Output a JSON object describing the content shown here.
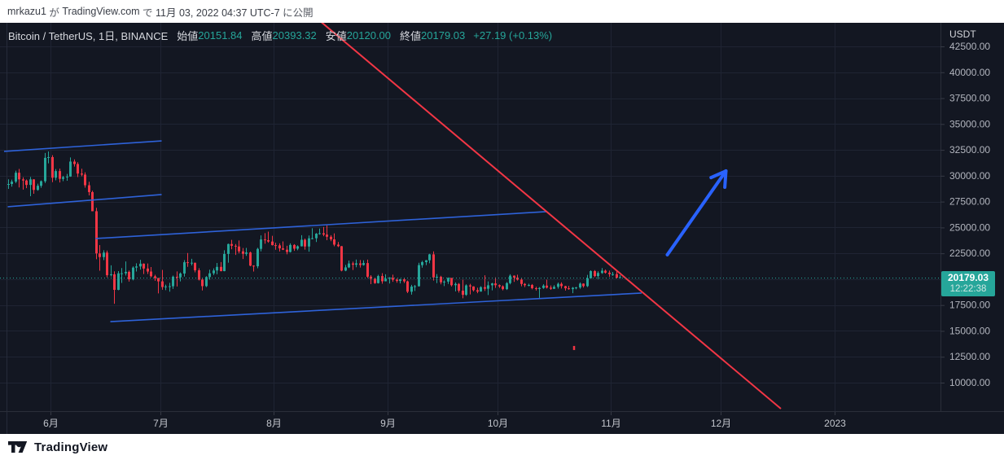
{
  "topbar": {
    "user": "mrkazu1",
    "particle_1": " が ",
    "site": "TradingView.com",
    "particle_2": " で ",
    "datetime": "11月 03, 2022 04:37 UTC-7",
    "suffix": " に公開"
  },
  "legend": {
    "title": "Bitcoin / TetherUS, 1日, BINANCE",
    "fields": [
      {
        "label": "始値",
        "value": "20151.84"
      },
      {
        "label": "高値",
        "value": "20393.32"
      },
      {
        "label": "安値",
        "value": "20120.00"
      },
      {
        "label": "終値",
        "value": "20179.03"
      }
    ],
    "change": "+27.19 (+0.13%)"
  },
  "price_axis": {
    "currency_label": "USDT",
    "ticks": [
      "42500.00",
      "40000.00",
      "37500.00",
      "35000.00",
      "32500.00",
      "30000.00",
      "27500.00",
      "25000.00",
      "22500.00",
      "17500.00",
      "15000.00",
      "12500.00",
      "10000.00"
    ],
    "badge": {
      "price": "20179.03",
      "countdown": "12:22:38"
    }
  },
  "time_axis": {
    "labels": [
      {
        "text": "6月",
        "day": 12
      },
      {
        "text": "7月",
        "day": 42
      },
      {
        "text": "8月",
        "day": 73
      },
      {
        "text": "9月",
        "day": 104
      },
      {
        "text": "10月",
        "day": 134
      },
      {
        "text": "11月",
        "day": 165
      },
      {
        "text": "12月",
        "day": 195
      },
      {
        "text": "2023",
        "day": 226
      }
    ]
  },
  "footer": {
    "brand": "TradingView"
  },
  "chart_data": {
    "type": "candlestick",
    "title": "Bitcoin / TetherUS, 1日, BINANCE",
    "symbol": "BTC/USDT",
    "interval": "1日",
    "exchange": "BINANCE",
    "visible_date_range": [
      "2022-05-20",
      "2023-01-15"
    ],
    "ylim": [
      10000,
      42500
    ],
    "grid_step": 2500,
    "last_bar": {
      "open": 20151.84,
      "high": 20393.32,
      "low": 20120.0,
      "close": 20179.03,
      "change": 27.19,
      "change_pct": 0.13
    },
    "price_line": 20179.03,
    "candles": [
      [
        29190,
        29650,
        28730,
        29200
      ],
      [
        29200,
        29620,
        28950,
        29430
      ],
      [
        29430,
        30490,
        29290,
        30290
      ],
      [
        30290,
        30660,
        28870,
        29650
      ],
      [
        29650,
        29850,
        28660,
        29540
      ],
      [
        29540,
        29630,
        28800,
        29110
      ],
      [
        29110,
        29880,
        28020,
        29650
      ],
      [
        29650,
        29660,
        28260,
        28630
      ],
      [
        28630,
        29230,
        28550,
        29030
      ],
      [
        29030,
        29550,
        28840,
        29470
      ],
      [
        29470,
        32200,
        29300,
        31730
      ],
      [
        31730,
        32350,
        31200,
        31800
      ],
      [
        31800,
        31980,
        29380,
        29810
      ],
      [
        29810,
        30650,
        29560,
        30450
      ],
      [
        30450,
        30690,
        29350,
        29700
      ],
      [
        29700,
        29990,
        29480,
        29860
      ],
      [
        29860,
        30170,
        29520,
        29920
      ],
      [
        29920,
        31770,
        29900,
        31370
      ],
      [
        31370,
        31580,
        30880,
        31130
      ],
      [
        31130,
        31310,
        29870,
        30210
      ],
      [
        30210,
        30680,
        29950,
        30110
      ],
      [
        30110,
        30330,
        28850,
        29080
      ],
      [
        29080,
        29420,
        28100,
        28420
      ],
      [
        28420,
        28550,
        26570,
        26570
      ],
      [
        26570,
        26900,
        21930,
        22490
      ],
      [
        22490,
        23300,
        20820,
        22140
      ],
      [
        22140,
        22800,
        21840,
        22570
      ],
      [
        22570,
        22770,
        20180,
        20390
      ],
      [
        20390,
        21340,
        20260,
        20470
      ],
      [
        20470,
        20760,
        17620,
        18970
      ],
      [
        18970,
        20780,
        18930,
        20570
      ],
      [
        20570,
        21080,
        19640,
        20570
      ],
      [
        20570,
        21720,
        20360,
        20710
      ],
      [
        20710,
        20840,
        19770,
        19990
      ],
      [
        19990,
        21230,
        19890,
        21120
      ],
      [
        21120,
        21540,
        20740,
        21230
      ],
      [
        21230,
        21870,
        20930,
        21500
      ],
      [
        21500,
        21530,
        20500,
        21030
      ],
      [
        21030,
        21520,
        20510,
        20740
      ],
      [
        20740,
        21170,
        20180,
        20280
      ],
      [
        20280,
        20430,
        19850,
        20100
      ],
      [
        20100,
        20130,
        18630,
        19790
      ],
      [
        19790,
        20900,
        18980,
        19240
      ],
      [
        19240,
        19470,
        18940,
        19300
      ],
      [
        19300,
        19650,
        18790,
        19320
      ],
      [
        19320,
        20350,
        19060,
        20240
      ],
      [
        20240,
        20750,
        19300,
        20180
      ],
      [
        20180,
        20650,
        19790,
        20550
      ],
      [
        20550,
        21840,
        20250,
        21640
      ],
      [
        21640,
        22530,
        21190,
        21590
      ],
      [
        21590,
        21970,
        21330,
        21590
      ],
      [
        21590,
        21600,
        20660,
        20860
      ],
      [
        20860,
        21060,
        19880,
        19960
      ],
      [
        19960,
        20050,
        18910,
        19330
      ],
      [
        19330,
        20290,
        19240,
        20210
      ],
      [
        20210,
        20920,
        19950,
        20570
      ],
      [
        20570,
        21050,
        20400,
        20840
      ],
      [
        20840,
        21570,
        20480,
        21190
      ],
      [
        21190,
        21660,
        20750,
        20780
      ],
      [
        20780,
        22800,
        20760,
        22440
      ],
      [
        22440,
        23440,
        21600,
        23400
      ],
      [
        23400,
        23800,
        22900,
        23230
      ],
      [
        23230,
        23400,
        22340,
        23160
      ],
      [
        23160,
        23740,
        22500,
        22690
      ],
      [
        22690,
        23010,
        21950,
        22450
      ],
      [
        22450,
        23020,
        22260,
        22580
      ],
      [
        22580,
        22660,
        21250,
        21310
      ],
      [
        21310,
        21340,
        20740,
        21250
      ],
      [
        21250,
        23030,
        21060,
        22930
      ],
      [
        22930,
        24230,
        22690,
        23840
      ],
      [
        23840,
        24450,
        23430,
        23770
      ],
      [
        23770,
        24600,
        23530,
        23640
      ],
      [
        23640,
        24190,
        23260,
        23290
      ],
      [
        23290,
        23530,
        22850,
        23270
      ],
      [
        23270,
        23470,
        22680,
        22980
      ],
      [
        22980,
        23650,
        22820,
        22850
      ],
      [
        22850,
        23230,
        22400,
        22630
      ],
      [
        22630,
        23470,
        22580,
        23310
      ],
      [
        23310,
        23390,
        22740,
        22950
      ],
      [
        22950,
        23270,
        22800,
        23180
      ],
      [
        23180,
        24250,
        23160,
        23810
      ],
      [
        23810,
        23930,
        22860,
        23160
      ],
      [
        23160,
        24220,
        22660,
        23950
      ],
      [
        23950,
        24920,
        23850,
        23960
      ],
      [
        23960,
        24460,
        23590,
        24400
      ],
      [
        24400,
        24890,
        24300,
        24440
      ],
      [
        24440,
        25050,
        24150,
        24310
      ],
      [
        24310,
        25210,
        23770,
        24100
      ],
      [
        24100,
        24250,
        23670,
        23850
      ],
      [
        23850,
        24430,
        23180,
        23340
      ],
      [
        23340,
        23590,
        23100,
        23190
      ],
      [
        23190,
        23210,
        20760,
        20830
      ],
      [
        20830,
        21380,
        20770,
        21140
      ],
      [
        21140,
        21800,
        21080,
        21520
      ],
      [
        21520,
        21700,
        20890,
        21400
      ],
      [
        21400,
        21900,
        21150,
        21530
      ],
      [
        21530,
        21850,
        21130,
        21370
      ],
      [
        21370,
        21820,
        21310,
        21560
      ],
      [
        21560,
        21890,
        20110,
        20240
      ],
      [
        20240,
        20390,
        19520,
        20040
      ],
      [
        20040,
        20150,
        19550,
        19620
      ],
      [
        19620,
        20430,
        19580,
        20300
      ],
      [
        20300,
        20580,
        19560,
        19800
      ],
      [
        19800,
        20480,
        19790,
        20050
      ],
      [
        20050,
        20200,
        19580,
        20130
      ],
      [
        20130,
        20440,
        19750,
        19950
      ],
      [
        19950,
        20060,
        19660,
        19830
      ],
      [
        19830,
        20030,
        19590,
        19990
      ],
      [
        19990,
        20060,
        19630,
        19790
      ],
      [
        19790,
        19870,
        18660,
        18790
      ],
      [
        18790,
        19450,
        18510,
        19290
      ],
      [
        19290,
        19440,
        18860,
        19320
      ],
      [
        19320,
        21590,
        19290,
        21360
      ],
      [
        21360,
        21770,
        21120,
        21650
      ],
      [
        21650,
        21850,
        21360,
        21830
      ],
      [
        21830,
        22450,
        21540,
        22400
      ],
      [
        22400,
        22690,
        19870,
        20170
      ],
      [
        20170,
        20500,
        19620,
        20230
      ],
      [
        20230,
        20330,
        19500,
        19700
      ],
      [
        19700,
        19890,
        19330,
        19770
      ],
      [
        19770,
        20170,
        19540,
        20120
      ],
      [
        20120,
        20120,
        19300,
        19420
      ],
      [
        19420,
        19690,
        18820,
        19540
      ],
      [
        19540,
        19630,
        18710,
        18890
      ],
      [
        18890,
        19950,
        18150,
        18490
      ],
      [
        18490,
        19500,
        18390,
        19400
      ],
      [
        19400,
        19550,
        18530,
        19300
      ],
      [
        19300,
        19320,
        18810,
        18940
      ],
      [
        18940,
        19180,
        18650,
        18800
      ],
      [
        18800,
        19320,
        18800,
        19230
      ],
      [
        19230,
        20380,
        18860,
        19080
      ],
      [
        19080,
        19790,
        18470,
        19410
      ],
      [
        19410,
        19650,
        18920,
        19590
      ],
      [
        19590,
        20180,
        19160,
        19420
      ],
      [
        19420,
        19490,
        19160,
        19310
      ],
      [
        19310,
        19400,
        18920,
        19040
      ],
      [
        19040,
        19720,
        18960,
        19620
      ],
      [
        19620,
        20480,
        19500,
        20340
      ],
      [
        20340,
        20370,
        19740,
        20160
      ],
      [
        20160,
        20440,
        19870,
        19960
      ],
      [
        19960,
        20060,
        19320,
        19540
      ],
      [
        19540,
        19630,
        19240,
        19420
      ],
      [
        19420,
        19560,
        19320,
        19440
      ],
      [
        19440,
        19530,
        19020,
        19130
      ],
      [
        19130,
        19270,
        18900,
        19050
      ],
      [
        19050,
        19240,
        18190,
        19150
      ],
      [
        19150,
        19510,
        19070,
        19380
      ],
      [
        19380,
        19950,
        19100,
        19180
      ],
      [
        19180,
        19390,
        18970,
        19070
      ],
      [
        19070,
        19420,
        19060,
        19260
      ],
      [
        19260,
        19680,
        19090,
        19550
      ],
      [
        19550,
        19700,
        19100,
        19330
      ],
      [
        19330,
        19360,
        18900,
        19120
      ],
      [
        19120,
        19350,
        18980,
        19040
      ],
      [
        19040,
        19250,
        18650,
        19170
      ],
      [
        19170,
        19260,
        19020,
        19200
      ],
      [
        19200,
        19690,
        19070,
        19570
      ],
      [
        19570,
        19600,
        19190,
        19330
      ],
      [
        19330,
        20420,
        19240,
        20090
      ],
      [
        20090,
        20860,
        20050,
        20780
      ],
      [
        20780,
        20880,
        20190,
        20300
      ],
      [
        20300,
        20760,
        20000,
        20600
      ],
      [
        20600,
        21080,
        20520,
        20820
      ],
      [
        20820,
        20930,
        20540,
        20630
      ],
      [
        20630,
        20830,
        20230,
        20490
      ],
      [
        20490,
        20700,
        20330,
        20490
      ],
      [
        20490,
        20800,
        20060,
        20150
      ],
      [
        20151.84,
        20393.32,
        20120.0,
        20179.03
      ]
    ],
    "drawings": {
      "channel_lines": [
        {
          "d1": -1,
          "p1": 32350,
          "d2": 42,
          "p2": 33370
        },
        {
          "d1": 0,
          "p1": 27000,
          "d2": 42,
          "p2": 28180
        },
        {
          "d1": 24,
          "p1": 23930,
          "d2": 147,
          "p2": 26530
        },
        {
          "d1": 28,
          "p1": 15900,
          "d2": 173,
          "p2": 18660
        }
      ],
      "downtrend_line": {
        "d1": 85,
        "p1": 45020,
        "d2": 211,
        "p2": 7480
      },
      "arrow_up": {
        "d1": 180,
        "p1": 22360,
        "d2": 196,
        "p2": 30460
      },
      "red_mark": {
        "d": 154.5,
        "p": 13390
      }
    },
    "colors": {
      "background": "#131722",
      "grid": "#1f2433",
      "up": "#26a69a",
      "down": "#f23645",
      "channel_blue": "#2e62d9",
      "arrow_blue": "#2962ff",
      "trend_red": "#f23645",
      "price_line": "#26a69a",
      "badge_bg": "#26a69a",
      "axis_text": "#b2b5be"
    }
  }
}
